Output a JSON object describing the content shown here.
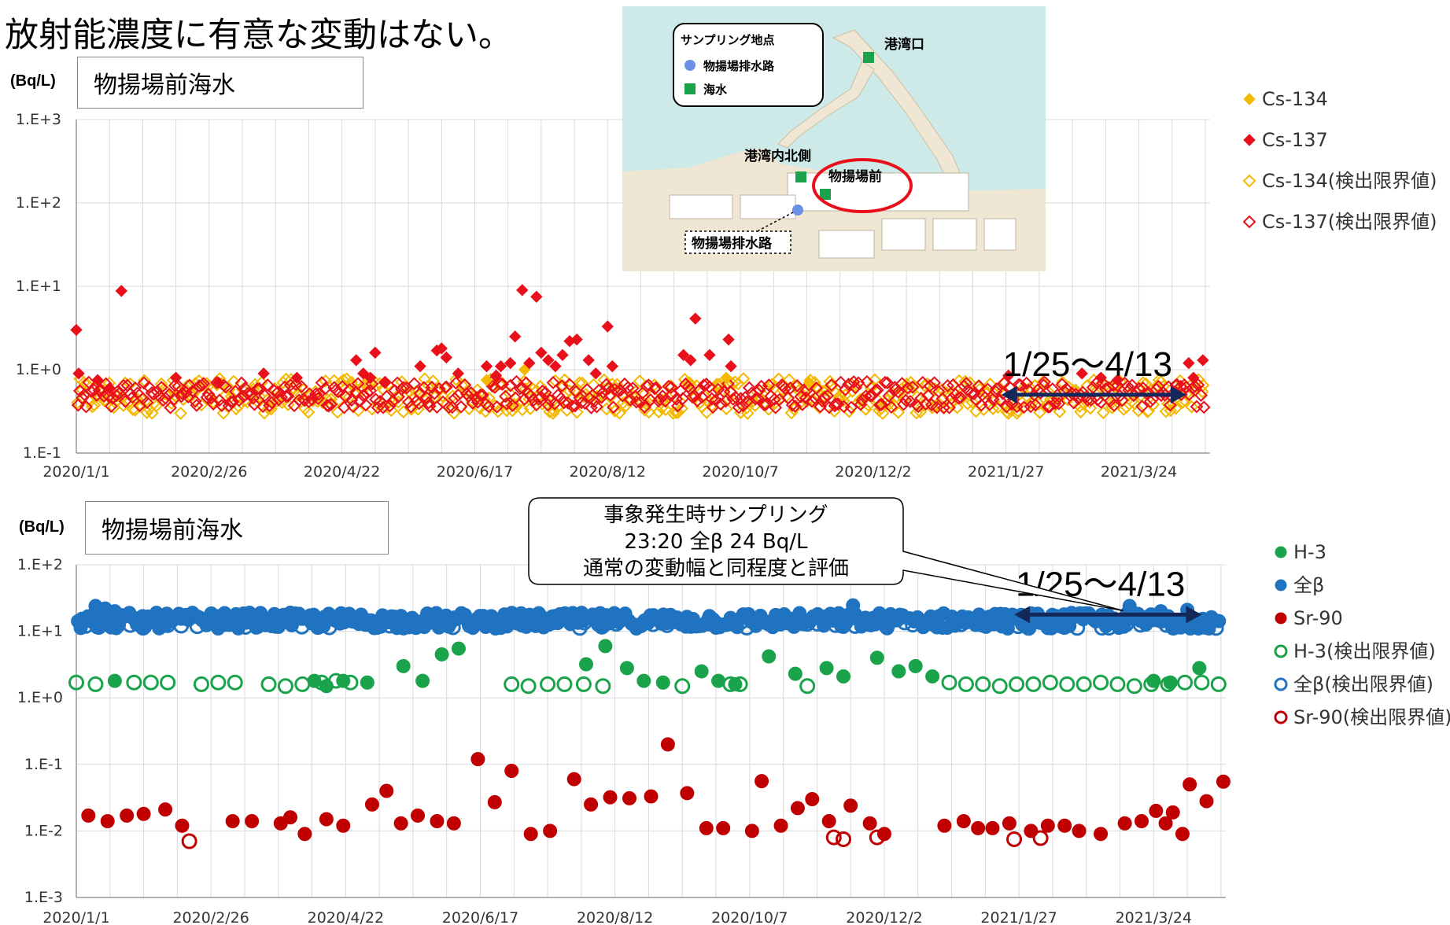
{
  "headline": "放射能濃度に有意な変動はない。",
  "map": {
    "legend_title": "サンプリング地点",
    "legend_items": [
      {
        "label": "物揚場排水路",
        "color": "#6d8fe6",
        "shape": "circle"
      },
      {
        "label": "海水",
        "color": "#1aa34a",
        "shape": "square"
      }
    ],
    "places": [
      "港湾口",
      "港湾内北側",
      "物揚場前",
      "物揚場排水路"
    ],
    "highlight_color": "#e8101a"
  },
  "chart_data": [
    {
      "type": "scatter",
      "title": "物揚場前海水",
      "ylabel": "(Bq/L)",
      "yscale": "log",
      "ylim": [
        0.1,
        1000
      ],
      "yticks": [
        "1.E-1",
        "1.E+0",
        "1.E+1",
        "1.E+2",
        "1.E+3"
      ],
      "x_range": [
        "2020/1/1",
        "2021/4/23"
      ],
      "xticks": [
        "2020/1/1",
        "2020/2/26",
        "2020/4/22",
        "2020/6/17",
        "2020/8/12",
        "2020/10/7",
        "2020/12/2",
        "2021/1/27",
        "2021/3/24"
      ],
      "grid": true,
      "legend_position": "right",
      "annotation": {
        "text": "1/25〜4/13",
        "x_start": "2021/1/25",
        "x_end": "2021/4/13",
        "y": 0.5
      },
      "series": [
        {
          "name": "Cs-134",
          "color": "#f4b800",
          "marker": "diamond",
          "filled": true,
          "points": [
            [
              "2020/6/22",
              0.75
            ],
            [
              "2020/7/8",
              1.0
            ],
            [
              "2020/10/1",
              0.8
            ],
            [
              "2020/11/5",
              0.7
            ]
          ]
        },
        {
          "name": "Cs-137",
          "color": "#e8101a",
          "marker": "diamond",
          "filled": true,
          "points": [
            [
              "2020/1/1",
              3.0
            ],
            [
              "2020/1/2",
              0.9
            ],
            [
              "2020/1/20",
              8.8
            ],
            [
              "2020/1/10",
              0.75
            ],
            [
              "2020/1/15",
              0.6
            ],
            [
              "2020/2/12",
              0.8
            ],
            [
              "2020/3/1",
              0.7
            ],
            [
              "2020/3/20",
              0.9
            ],
            [
              "2020/4/3",
              0.8
            ],
            [
              "2020/4/28",
              1.3
            ],
            [
              "2020/5/1",
              0.9
            ],
            [
              "2020/5/4",
              0.8
            ],
            [
              "2020/5/6",
              1.6
            ],
            [
              "2020/5/10",
              0.7
            ],
            [
              "2020/5/25",
              1.1
            ],
            [
              "2020/6/1",
              1.7
            ],
            [
              "2020/6/3",
              1.8
            ],
            [
              "2020/6/5",
              1.4
            ],
            [
              "2020/6/10",
              0.9
            ],
            [
              "2020/6/22",
              1.1
            ],
            [
              "2020/6/26",
              0.85
            ],
            [
              "2020/6/28",
              1.1
            ],
            [
              "2020/7/2",
              1.2
            ],
            [
              "2020/7/4",
              2.5
            ],
            [
              "2020/7/7",
              9.0
            ],
            [
              "2020/7/10",
              1.2
            ],
            [
              "2020/7/13",
              7.5
            ],
            [
              "2020/7/15",
              1.6
            ],
            [
              "2020/7/18",
              1.3
            ],
            [
              "2020/7/21",
              1.1
            ],
            [
              "2020/7/24",
              1.5
            ],
            [
              "2020/7/27",
              2.2
            ],
            [
              "2020/7/30",
              2.3
            ],
            [
              "2020/8/4",
              1.3
            ],
            [
              "2020/8/7",
              0.9
            ],
            [
              "2020/8/12",
              3.3
            ],
            [
              "2020/8/14",
              1.1
            ],
            [
              "2020/9/13",
              1.5
            ],
            [
              "2020/9/16",
              1.3
            ],
            [
              "2020/9/18",
              4.1
            ],
            [
              "2020/9/24",
              1.5
            ],
            [
              "2020/10/2",
              2.3
            ],
            [
              "2020/10/3",
              1.1
            ],
            [
              "2021/1/28",
              0.85
            ],
            [
              "2021/2/28",
              0.9
            ],
            [
              "2021/3/8",
              0.8
            ],
            [
              "2021/3/15",
              0.75
            ],
            [
              "2021/4/14",
              1.2
            ],
            [
              "2021/4/16",
              0.8
            ],
            [
              "2021/4/20",
              1.3
            ]
          ]
        },
        {
          "name": "Cs-134(検出限界値)",
          "color": "#f4b800",
          "marker": "diamond",
          "filled": false,
          "band": [
            0.3,
            0.78
          ],
          "count": 470,
          "points": [
            [
              "2020/2/14",
              0.3
            ],
            [
              "2020/7/20",
              0.3
            ],
            [
              "2020/10/10",
              0.3
            ],
            [
              "2020/12/6",
              0.3
            ],
            [
              "2021/1/28",
              0.3
            ],
            [
              "2021/3/28",
              0.32
            ]
          ]
        },
        {
          "name": "Cs-137(検出限界値)",
          "color": "#e8101a",
          "marker": "diamond",
          "filled": false,
          "band": [
            0.35,
            0.72
          ],
          "count": 470,
          "points": []
        }
      ]
    },
    {
      "type": "scatter",
      "title": "物揚場前海水",
      "ylabel": "(Bq/L)",
      "yscale": "log",
      "ylim": [
        0.001,
        100
      ],
      "yticks": [
        "1.E-3",
        "1.E-2",
        "1.E-1",
        "1.E+0",
        "1.E+1",
        "1.E+2"
      ],
      "x_range": [
        "2020/1/1",
        "2021/4/23"
      ],
      "xticks": [
        "2020/1/1",
        "2020/2/26",
        "2020/4/22",
        "2020/6/17",
        "2020/8/12",
        "2020/10/7",
        "2020/12/2",
        "2021/1/27",
        "2021/3/24"
      ],
      "grid": true,
      "legend_position": "right",
      "annotation": {
        "text": "1/25〜4/13",
        "x_start": "2021/1/25",
        "x_end": "2021/4/13",
        "y": 17.8
      },
      "callout": {
        "lines": [
          "事象発生時サンプリング",
          "23:20 全β 24 Bq/L",
          "通常の変動幅と同程度と評価"
        ],
        "target_x": "2021/3/14",
        "target_y": 24
      },
      "series": [
        {
          "name": "H-3",
          "color": "#1aa34a",
          "marker": "circle",
          "filled": true,
          "points": [
            [
              "2020/1/17",
              1.8
            ],
            [
              "2020/4/9",
              1.8
            ],
            [
              "2020/4/14",
              1.5
            ],
            [
              "2020/4/21",
              1.8
            ],
            [
              "2020/5/1",
              1.7
            ],
            [
              "2020/5/16",
              3.0
            ],
            [
              "2020/5/24",
              1.8
            ],
            [
              "2020/6/1",
              4.5
            ],
            [
              "2020/6/8",
              5.5
            ],
            [
              "2020/7/31",
              3.2
            ],
            [
              "2020/8/8",
              6.0
            ],
            [
              "2020/8/17",
              2.8
            ],
            [
              "2020/8/24",
              1.8
            ],
            [
              "2020/9/1",
              1.7
            ],
            [
              "2020/9/17",
              2.5
            ],
            [
              "2020/9/24",
              1.8
            ],
            [
              "2020/10/1",
              1.6
            ],
            [
              "2020/10/15",
              4.2
            ],
            [
              "2020/10/26",
              2.3
            ],
            [
              "2020/11/8",
              2.8
            ],
            [
              "2020/11/15",
              2.1
            ],
            [
              "2020/11/29",
              4.0
            ],
            [
              "2020/12/8",
              2.5
            ],
            [
              "2020/12/15",
              3.0
            ],
            [
              "2020/12/22",
              2.1
            ],
            [
              "2021/3/24",
              1.8
            ],
            [
              "2021/3/31",
              1.7
            ],
            [
              "2021/4/12",
              2.8
            ]
          ]
        },
        {
          "name": "全β",
          "color": "#1f73c0",
          "marker": "circle",
          "filled": true,
          "band": [
            11,
            19
          ],
          "count": 420,
          "points": [
            [
              "2020/1/9",
              24
            ],
            [
              "2020/1/13",
              22
            ],
            [
              "2020/1/17",
              20
            ],
            [
              "2020/3/13",
              19
            ],
            [
              "2020/11/19",
              24.5
            ],
            [
              "2021/3/14",
              24
            ],
            [
              "2021/3/27",
              20
            ],
            [
              "2021/4/7",
              21
            ]
          ]
        },
        {
          "name": "Sr-90",
          "color": "#c00000",
          "marker": "circle",
          "filled": true,
          "points": [
            [
              "2020/1/6",
              0.017
            ],
            [
              "2020/1/14",
              0.014
            ],
            [
              "2020/1/22",
              0.017
            ],
            [
              "2020/1/29",
              0.018
            ],
            [
              "2020/2/7",
              0.021
            ],
            [
              "2020/2/14",
              0.012
            ],
            [
              "2020/3/6",
              0.014
            ],
            [
              "2020/3/14",
              0.014
            ],
            [
              "2020/3/26",
              0.013
            ],
            [
              "2020/3/30",
              0.016
            ],
            [
              "2020/4/5",
              0.009
            ],
            [
              "2020/4/14",
              0.015
            ],
            [
              "2020/4/21",
              0.012
            ],
            [
              "2020/5/3",
              0.025
            ],
            [
              "2020/5/9",
              0.04
            ],
            [
              "2020/5/15",
              0.013
            ],
            [
              "2020/5/22",
              0.017
            ],
            [
              "2020/5/30",
              0.014
            ],
            [
              "2020/6/6",
              0.013
            ],
            [
              "2020/6/16",
              0.12
            ],
            [
              "2020/6/23",
              0.027
            ],
            [
              "2020/6/30",
              0.08
            ],
            [
              "2020/7/8",
              0.009
            ],
            [
              "2020/7/16",
              0.01
            ],
            [
              "2020/7/26",
              0.06
            ],
            [
              "2020/8/2",
              0.025
            ],
            [
              "2020/8/10",
              0.032
            ],
            [
              "2020/8/18",
              0.031
            ],
            [
              "2020/8/27",
              0.033
            ],
            [
              "2020/9/3",
              0.2
            ],
            [
              "2020/9/11",
              0.037
            ],
            [
              "2020/9/19",
              0.011
            ],
            [
              "2020/9/26",
              0.011
            ],
            [
              "2020/10/8",
              0.01
            ],
            [
              "2020/10/12",
              0.056
            ],
            [
              "2020/10/20",
              0.012
            ],
            [
              "2020/10/27",
              0.022
            ],
            [
              "2020/11/2",
              0.03
            ],
            [
              "2020/11/9",
              0.014
            ],
            [
              "2020/11/18",
              0.024
            ],
            [
              "2020/11/26",
              0.013
            ],
            [
              "2020/12/2",
              0.009
            ],
            [
              "2020/12/27",
              0.012
            ],
            [
              "2021/1/4",
              0.014
            ],
            [
              "2021/1/10",
              0.011
            ],
            [
              "2021/1/16",
              0.011
            ],
            [
              "2021/1/23",
              0.013
            ],
            [
              "2021/2/1",
              0.01
            ],
            [
              "2021/2/8",
              0.012
            ],
            [
              "2021/2/15",
              0.012
            ],
            [
              "2021/2/21",
              0.01
            ],
            [
              "2021/3/2",
              0.009
            ],
            [
              "2021/3/12",
              0.013
            ],
            [
              "2021/3/19",
              0.014
            ],
            [
              "2021/3/25",
              0.02
            ],
            [
              "2021/4/1",
              0.019
            ],
            [
              "2021/4/8",
              0.05
            ],
            [
              "2021/4/15",
              0.028
            ],
            [
              "2021/4/22",
              0.055
            ],
            [
              "2021/3/29",
              0.013
            ],
            [
              "2021/4/5",
              0.009
            ]
          ]
        },
        {
          "name": "H-3(検出限界値)",
          "color": "#1aa34a",
          "marker": "circle",
          "filled": false,
          "points": [
            [
              "2020/1/1",
              1.7
            ],
            [
              "2020/1/9",
              1.6
            ],
            [
              "2020/1/25",
              1.7
            ],
            [
              "2020/2/1",
              1.7
            ],
            [
              "2020/2/8",
              1.7
            ],
            [
              "2020/2/22",
              1.6
            ],
            [
              "2020/2/29",
              1.7
            ],
            [
              "2020/3/7",
              1.7
            ],
            [
              "2020/3/21",
              1.6
            ],
            [
              "2020/3/28",
              1.5
            ],
            [
              "2020/4/4",
              1.6
            ],
            [
              "2020/4/12",
              1.7
            ],
            [
              "2020/4/18",
              1.8
            ],
            [
              "2020/4/24",
              1.7
            ],
            [
              "2020/6/30",
              1.6
            ],
            [
              "2020/7/7",
              1.5
            ],
            [
              "2020/7/15",
              1.6
            ],
            [
              "2020/7/22",
              1.6
            ],
            [
              "2020/7/30",
              1.6
            ],
            [
              "2020/8/7",
              1.5
            ],
            [
              "2020/9/9",
              1.5
            ],
            [
              "2020/9/29",
              1.6
            ],
            [
              "2020/10/3",
              1.6
            ],
            [
              "2020/10/31",
              1.5
            ],
            [
              "2020/12/29",
              1.7
            ],
            [
              "2021/1/5",
              1.6
            ],
            [
              "2021/1/12",
              1.6
            ],
            [
              "2021/1/19",
              1.5
            ],
            [
              "2021/1/26",
              1.6
            ],
            [
              "2021/2/2",
              1.6
            ],
            [
              "2021/2/9",
              1.7
            ],
            [
              "2021/2/16",
              1.6
            ],
            [
              "2021/2/23",
              1.6
            ],
            [
              "2021/3/2",
              1.7
            ],
            [
              "2021/3/9",
              1.6
            ],
            [
              "2021/3/16",
              1.5
            ],
            [
              "2021/3/23",
              1.6
            ],
            [
              "2021/3/30",
              1.6
            ],
            [
              "2021/4/6",
              1.7
            ],
            [
              "2021/4/13",
              1.7
            ],
            [
              "2021/4/20",
              1.6
            ]
          ]
        },
        {
          "name": "全β(検出限界値)",
          "color": "#1f73c0",
          "marker": "circle",
          "filled": false,
          "band": [
            11,
            14
          ],
          "count": 70,
          "points": []
        },
        {
          "name": "Sr-90(検出限界値)",
          "color": "#c00000",
          "marker": "circle",
          "filled": false,
          "points": [
            [
              "2020/2/17",
              0.007
            ],
            [
              "2020/11/11",
              0.008
            ],
            [
              "2020/11/15",
              0.0075
            ],
            [
              "2020/11/29",
              0.008
            ],
            [
              "2021/1/25",
              0.0075
            ],
            [
              "2021/2/5",
              0.0078
            ]
          ]
        }
      ]
    }
  ]
}
